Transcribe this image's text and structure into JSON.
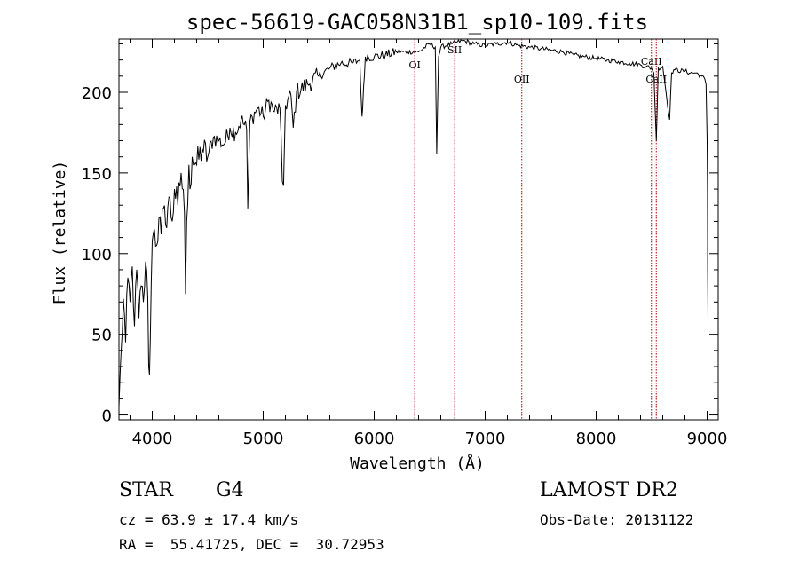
{
  "chart_data": {
    "type": "line",
    "title": "spec-56619-GAC058N31B1_sp10-109.fits",
    "xlabel": "Wavelength (Å)",
    "ylabel": "Flux (relative)",
    "xlim": [
      3700,
      9100
    ],
    "ylim": [
      -3,
      233
    ],
    "xticks": [
      4000,
      5000,
      6000,
      7000,
      8000,
      9000
    ],
    "yticks": [
      0,
      50,
      100,
      150,
      200
    ],
    "grid": false,
    "series": [
      {
        "x": [
          3700,
          3720,
          3740,
          3760,
          3780,
          3800,
          3820,
          3840,
          3860,
          3880,
          3900,
          3920,
          3940,
          3960,
          3968,
          3975,
          3990,
          4000,
          4020,
          4040,
          4060,
          4080,
          4100,
          4120,
          4150,
          4180,
          4200,
          4230,
          4260,
          4290,
          4300,
          4310,
          4330,
          4340,
          4360,
          4400,
          4450,
          4500,
          4550,
          4600,
          4650,
          4700,
          4750,
          4800,
          4850,
          4861,
          4880,
          4900,
          4950,
          5000,
          5050,
          5100,
          5150,
          5172,
          5183,
          5200,
          5250,
          5270,
          5300,
          5400,
          5500,
          5600,
          5700,
          5800,
          5870,
          5890,
          5896,
          5920,
          6000,
          6100,
          6200,
          6300,
          6400,
          6500,
          6550,
          6563,
          6580,
          6600,
          6700,
          6800,
          6900,
          7000,
          7100,
          7200,
          7300,
          7400,
          7500,
          7600,
          7700,
          7800,
          7900,
          8000,
          8100,
          8200,
          8300,
          8400,
          8450,
          8498,
          8520,
          8542,
          8560,
          8600,
          8662,
          8680,
          8700,
          8800,
          8850,
          8900,
          8950,
          8980,
          8990,
          9000,
          9003,
          9005,
          9008
        ],
        "values": [
          5,
          40,
          72,
          45,
          85,
          70,
          92,
          55,
          90,
          60,
          80,
          70,
          95,
          72,
          30,
          25,
          80,
          108,
          115,
          105,
          122,
          112,
          128,
          118,
          135,
          120,
          140,
          130,
          150,
          125,
          75,
          120,
          155,
          140,
          160,
          155,
          165,
          160,
          172,
          170,
          168,
          178,
          175,
          183,
          177,
          128,
          182,
          185,
          190,
          185,
          195,
          188,
          190,
          145,
          142,
          192,
          198,
          178,
          200,
          205,
          210,
          215,
          218,
          218,
          220,
          185,
          190,
          222,
          222,
          223,
          225,
          225,
          225,
          230,
          228,
          162,
          222,
          228,
          230,
          232,
          230,
          229,
          230,
          231,
          229,
          228,
          227,
          226,
          225,
          223,
          222,
          221,
          220,
          219,
          218,
          217,
          216,
          215,
          212,
          170,
          215,
          216,
          183,
          212,
          214,
          213,
          212,
          212,
          210,
          208,
          205,
          170,
          140,
          90,
          60
        ]
      }
    ],
    "line_markers": [
      {
        "label": "CaII",
        "x": 8498
      },
      {
        "label": "CaII",
        "x": 8542
      },
      {
        "label": "OII",
        "x": 7330
      },
      {
        "label": "SII",
        "x": 6725
      },
      {
        "label": "OI",
        "x": 6365
      }
    ]
  },
  "info": {
    "obj_class": "STAR",
    "subclass": "G4",
    "cz": "cz = 63.9 ± 17.4 km/s",
    "radec": "RA =  55.41725, DEC =  30.72953",
    "survey": "LAMOST DR2",
    "obs_date": "Obs-Date: 20131122"
  },
  "colors": {
    "spectrum": "#000000",
    "marker": "#aa0000"
  }
}
